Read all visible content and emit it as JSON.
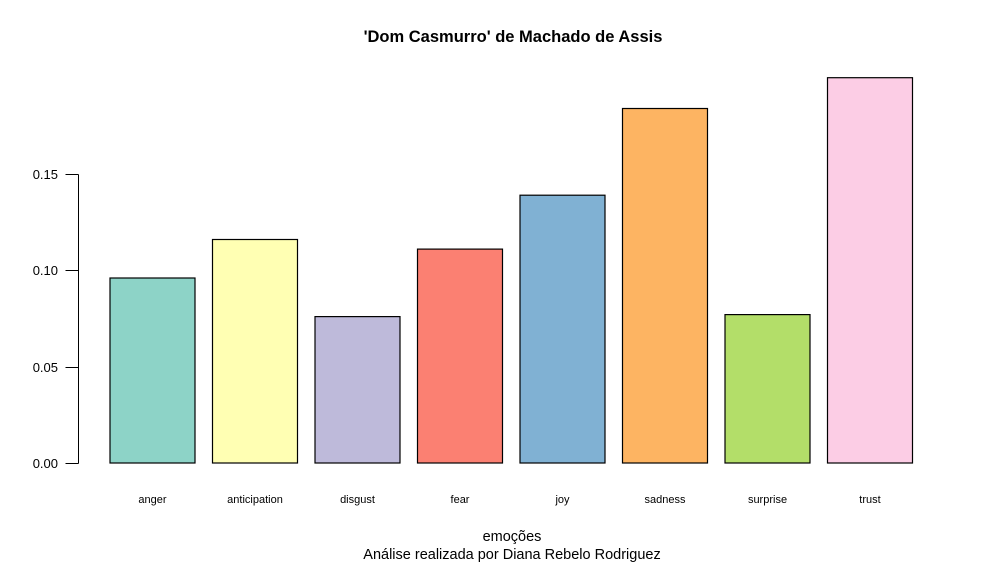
{
  "figure": {
    "background": "#ffffff",
    "text_color": "#000000",
    "axis_color": "#000000"
  },
  "chart_data": {
    "type": "bar",
    "title": "'Dom Casmurro' de Machado de Assis",
    "xlabel": "emoções",
    "subtitle": "Análise realizada por Diana Rebelo Rodriguez",
    "ylabel": "",
    "categories": [
      "anger",
      "anticipation",
      "disgust",
      "fear",
      "joy",
      "sadness",
      "surprise",
      "trust"
    ],
    "values": [
      0.096,
      0.116,
      0.076,
      0.111,
      0.139,
      0.184,
      0.077,
      0.2
    ],
    "colors": [
      "#8DD3C7",
      "#FFFFB3",
      "#BEBADA",
      "#FB8072",
      "#80B1D3",
      "#FDB462",
      "#B3DE69",
      "#FCCDE5"
    ],
    "bar_border_color": "#000000",
    "yticks": [
      0.0,
      0.05,
      0.1,
      0.15
    ],
    "ytick_labels": [
      "0.00",
      "0.05",
      "0.10",
      "0.15"
    ],
    "ylim": [
      0,
      0.203
    ],
    "grid": false,
    "legend": "none"
  }
}
